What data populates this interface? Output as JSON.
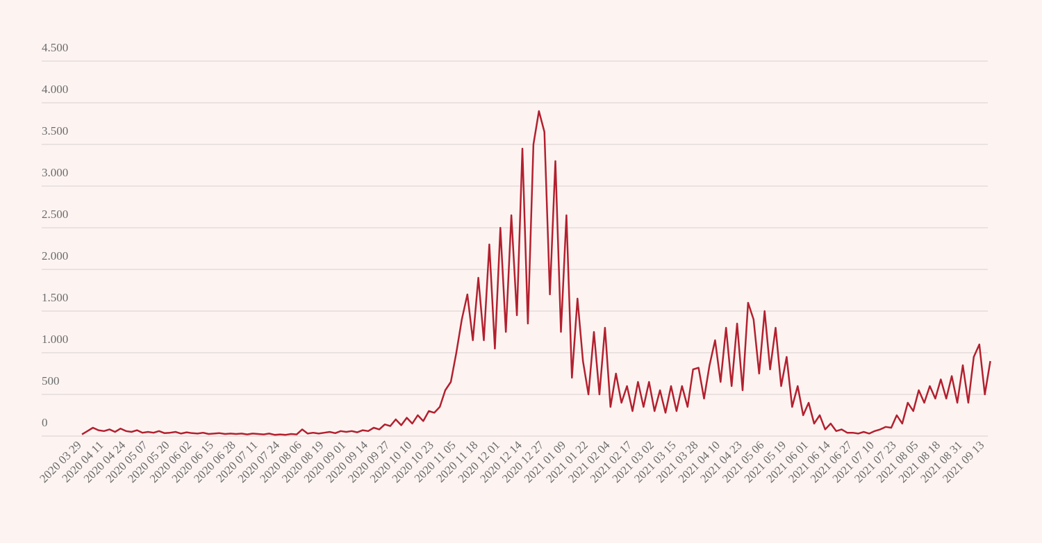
{
  "chart_data": {
    "type": "line",
    "categories": [
      "2020 03 29",
      null,
      null,
      null,
      "2020 04 11",
      null,
      null,
      null,
      "2020 04 24",
      null,
      null,
      null,
      "2020 05 07",
      null,
      null,
      null,
      "2020 05 20",
      null,
      null,
      null,
      "2020 06 02",
      null,
      null,
      null,
      "2020 06 15",
      null,
      null,
      null,
      "2020 06 28",
      null,
      null,
      null,
      "2020 07 11",
      null,
      null,
      null,
      "2020 07 24",
      null,
      null,
      null,
      "2020 08 06",
      null,
      null,
      null,
      "2020 08 19",
      null,
      null,
      null,
      "2020 09 01",
      null,
      null,
      null,
      "2020 09 14",
      null,
      null,
      null,
      "2020 09 27",
      null,
      null,
      null,
      "2020 10 10",
      null,
      null,
      null,
      "2020 10 23",
      null,
      null,
      null,
      "2020 11 05",
      null,
      null,
      null,
      "2020 11 18",
      null,
      null,
      null,
      "2020 12 01",
      null,
      null,
      null,
      "2020 12 14",
      null,
      null,
      null,
      "2020 12 27",
      null,
      null,
      null,
      "2021 01 09",
      null,
      null,
      null,
      "2021 01 22",
      null,
      null,
      null,
      "2021 02 04",
      null,
      null,
      null,
      "2021 02 17",
      null,
      null,
      null,
      "2021 03 02",
      null,
      null,
      null,
      "2021 03 15",
      null,
      null,
      null,
      "2021 03 28",
      null,
      null,
      null,
      "2021 04 10",
      null,
      null,
      null,
      "2021 04 23",
      null,
      null,
      null,
      "2021 05 06",
      null,
      null,
      null,
      "2021 05 19",
      null,
      null,
      null,
      "2021 06 01",
      null,
      null,
      null,
      "2021 06 14",
      null,
      null,
      null,
      "2021 06 27",
      null,
      null,
      null,
      "2021 07 10",
      null,
      null,
      null,
      "2021 07 23",
      null,
      null,
      null,
      "2021 08 05",
      null,
      null,
      null,
      "2021 08 18",
      null,
      null,
      null,
      "2021 08 31",
      null,
      null,
      null,
      "2021 09 13",
      null
    ],
    "values": [
      20,
      60,
      100,
      70,
      60,
      80,
      50,
      90,
      60,
      50,
      70,
      40,
      50,
      40,
      60,
      35,
      40,
      50,
      30,
      45,
      35,
      30,
      40,
      25,
      30,
      35,
      25,
      30,
      25,
      30,
      20,
      30,
      25,
      20,
      30,
      15,
      20,
      15,
      25,
      20,
      80,
      30,
      40,
      30,
      40,
      50,
      35,
      60,
      50,
      60,
      45,
      70,
      60,
      100,
      80,
      140,
      120,
      200,
      130,
      220,
      150,
      250,
      180,
      300,
      280,
      350,
      550,
      650,
      1000,
      1400,
      1700,
      1150,
      1900,
      1150,
      2300,
      1050,
      2500,
      1250,
      2650,
      1450,
      3450,
      1350,
      3500,
      3900,
      3650,
      1700,
      3300,
      1250,
      2650,
      700,
      1650,
      900,
      500,
      1250,
      500,
      1300,
      350,
      750,
      400,
      600,
      300,
      650,
      350,
      650,
      300,
      550,
      280,
      600,
      300,
      600,
      350,
      800,
      820,
      450,
      850,
      1150,
      650,
      1300,
      600,
      1350,
      550,
      1600,
      1400,
      750,
      1500,
      800,
      1300,
      600,
      950,
      350,
      600,
      250,
      400,
      150,
      250,
      80,
      150,
      60,
      80,
      40,
      40,
      30,
      50,
      30,
      60,
      80,
      110,
      100,
      250,
      150,
      400,
      300,
      550,
      400,
      600,
      450,
      680,
      450,
      720,
      400,
      850,
      400,
      950,
      1100,
      500,
      900
    ],
    "color": "#b3202e",
    "ylim": [
      0,
      4500
    ],
    "yticks": [
      0,
      500,
      {
        "value": 1000,
        "label": "1.000"
      },
      {
        "value": 1500,
        "label": "1.500"
      },
      {
        "value": 2000,
        "label": "2.000"
      },
      {
        "value": 2500,
        "label": "2.500"
      },
      {
        "value": 3000,
        "label": "3.000"
      },
      {
        "value": 3500,
        "label": "3.500"
      },
      {
        "value": 4000,
        "label": "4.000"
      },
      {
        "value": 4500,
        "label": "4.500"
      }
    ],
    "grid": true
  }
}
